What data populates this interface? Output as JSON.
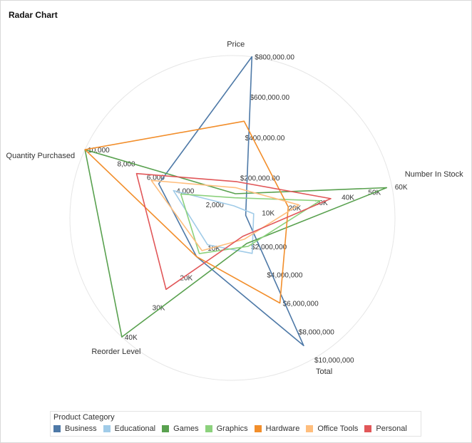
{
  "title": "Radar Chart",
  "legend": {
    "title": "Product Category"
  },
  "chart_data": {
    "type": "radar",
    "axes": [
      {
        "name": "Price",
        "max": 800000,
        "ticks": [
          {
            "value": 200000,
            "label": "$200,000.00"
          },
          {
            "value": 400000,
            "label": "$400,000.00"
          },
          {
            "value": 600000,
            "label": "$600,000.00"
          },
          {
            "value": 800000,
            "label": "$800,000.00"
          }
        ]
      },
      {
        "name": "Number In Stock",
        "max": 60000,
        "ticks": [
          {
            "value": 10000,
            "label": "10K"
          },
          {
            "value": 20000,
            "label": "20K"
          },
          {
            "value": 30000,
            "label": "30K"
          },
          {
            "value": 40000,
            "label": "40K"
          },
          {
            "value": 50000,
            "label": "50K"
          },
          {
            "value": 60000,
            "label": "60K"
          }
        ]
      },
      {
        "name": "Total",
        "max": 10000000,
        "ticks": [
          {
            "value": 2000000,
            "label": "$2,000,000"
          },
          {
            "value": 4000000,
            "label": "$4,000,000"
          },
          {
            "value": 6000000,
            "label": "$6,000,000"
          },
          {
            "value": 8000000,
            "label": "$8,000,000"
          },
          {
            "value": 10000000,
            "label": "$10,000,000"
          }
        ]
      },
      {
        "name": "Reorder Level",
        "max": 40000,
        "ticks": [
          {
            "value": 10000,
            "label": "10K"
          },
          {
            "value": 20000,
            "label": "20K"
          },
          {
            "value": 30000,
            "label": "30K"
          },
          {
            "value": 40000,
            "label": "40K"
          }
        ]
      },
      {
        "name": "Quantity Purchased",
        "max": 10000,
        "ticks": [
          {
            "value": 2000,
            "label": "2,000"
          },
          {
            "value": 4000,
            "label": "4,000"
          },
          {
            "value": 6000,
            "label": "6,000"
          },
          {
            "value": 8000,
            "label": "8,000"
          },
          {
            "value": 10000,
            "label": "10,000"
          }
        ]
      }
    ],
    "series": [
      {
        "name": "Business",
        "color": "#4e79a7",
        "values": [
          800000,
          5000,
          9000000,
          13000,
          5000
        ]
      },
      {
        "name": "Educational",
        "color": "#a0cbe8",
        "values": [
          60000,
          8000,
          2500000,
          9000,
          4000
        ]
      },
      {
        "name": "Games",
        "color": "#59a14f",
        "values": [
          120000,
          58000,
          1800000,
          40000,
          10000
        ]
      },
      {
        "name": "Graphics",
        "color": "#8cd17d",
        "values": [
          100000,
          33000,
          2000000,
          12000,
          3500
        ]
      },
      {
        "name": "Hardware",
        "color": "#f28e2b",
        "values": [
          480000,
          21000,
          6000000,
          13000,
          10000
        ]
      },
      {
        "name": "Office Tools",
        "color": "#ffbe7d",
        "values": [
          150000,
          25000,
          1500000,
          11000,
          5500
        ]
      },
      {
        "name": "Personal",
        "color": "#e15759",
        "values": [
          180000,
          37000,
          1300000,
          24000,
          6500
        ]
      }
    ],
    "grid": true,
    "legend_position": "bottom"
  }
}
